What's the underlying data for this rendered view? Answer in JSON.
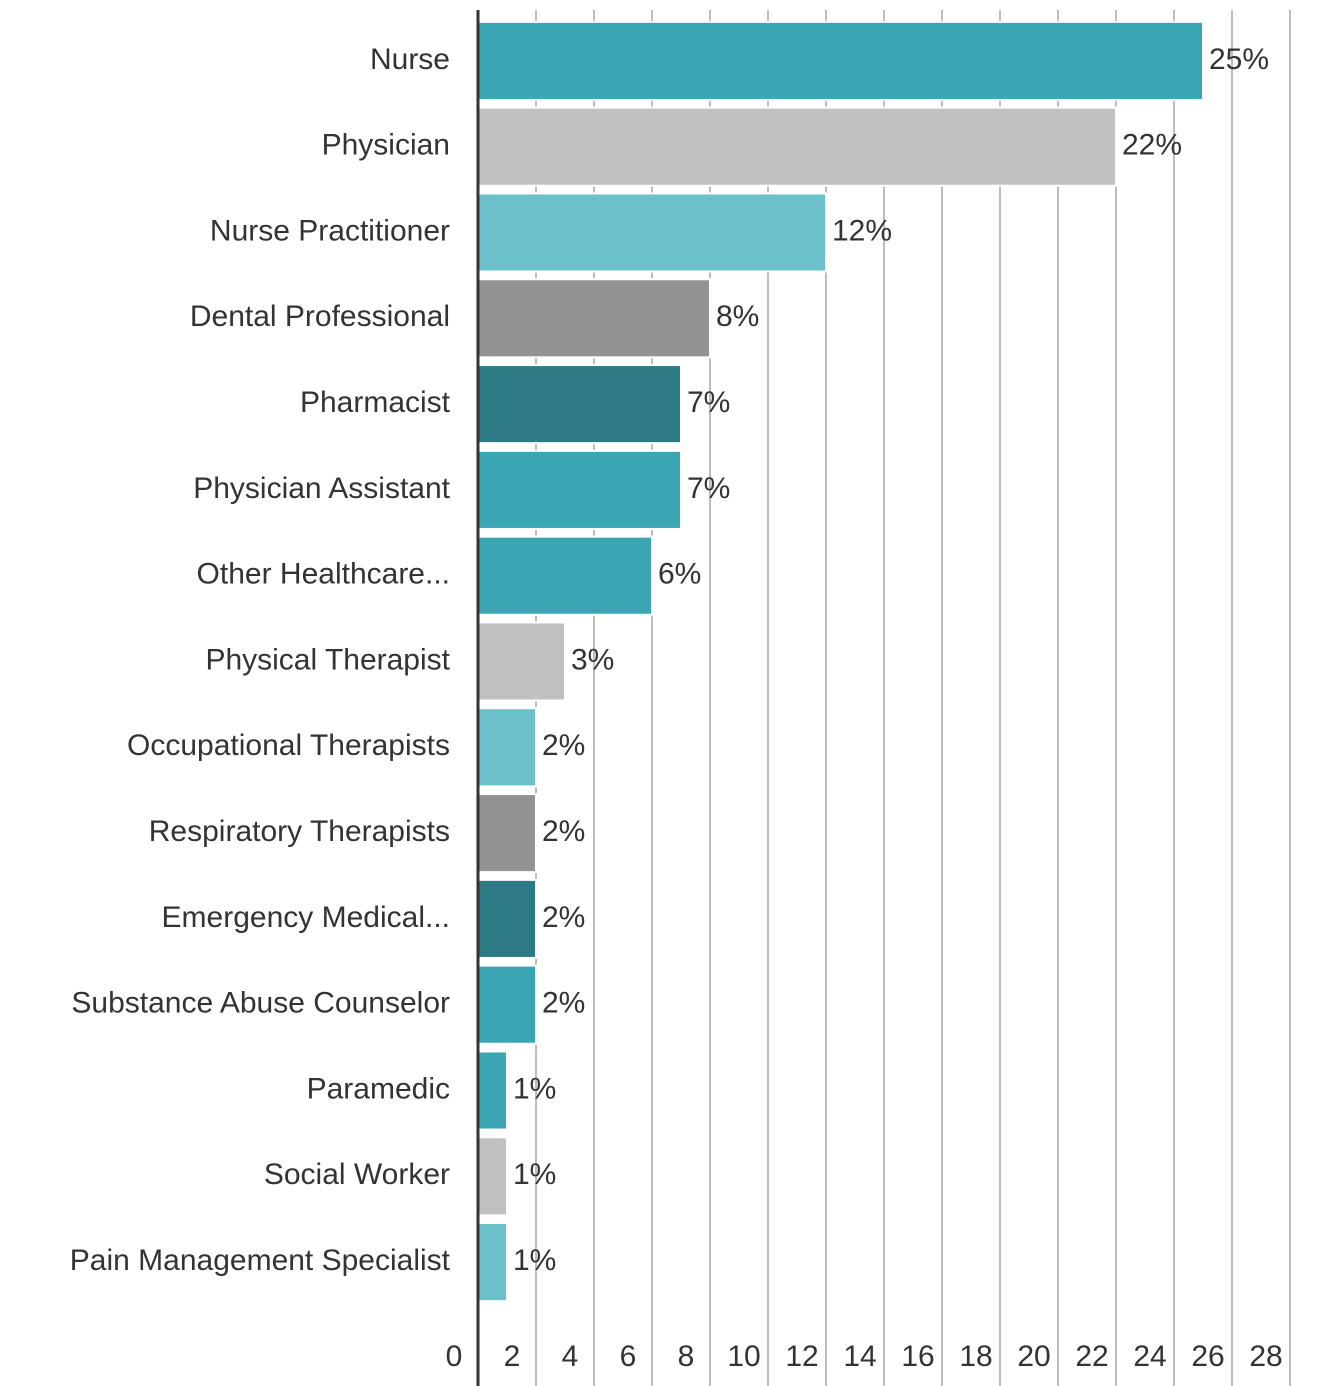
{
  "chart_data": {
    "type": "barh",
    "categories": [
      "Nurse",
      "Physician",
      "Nurse Practitioner",
      "Dental Professional",
      "Pharmacist",
      "Physician Assistant",
      "Other Healthcare...",
      "Physical Therapist",
      "Occupational Therapists",
      "Respiratory Therapists",
      "Emergency Medical...",
      "Substance Abuse Counselor",
      "Paramedic",
      "Social Worker",
      "Pain Management Specialist"
    ],
    "values": [
      25,
      22,
      12,
      8,
      7,
      7,
      6,
      3,
      2,
      2,
      2,
      2,
      1,
      1,
      1
    ],
    "value_labels": [
      "25%",
      "22%",
      "12%",
      "8%",
      "7%",
      "7%",
      "6%",
      "3%",
      "2%",
      "2%",
      "2%",
      "2%",
      "1%",
      "1%",
      "1%"
    ],
    "colors": [
      "#3ba6b3",
      "#c0c0c0",
      "#6bc0c9",
      "#939393",
      "#2d7a84",
      "#3ba6b3",
      "#3ba6b3",
      "#c0c0c0",
      "#6bc0c9",
      "#939393",
      "#2d7a84",
      "#3ba6b3",
      "#3ba6b3",
      "#c0c0c0",
      "#6bc0c9"
    ],
    "xlim": [
      0,
      28
    ],
    "xticks": [
      0,
      2,
      4,
      6,
      8,
      10,
      12,
      14,
      16,
      18,
      20,
      22,
      24,
      26,
      28
    ],
    "grid": true
  }
}
